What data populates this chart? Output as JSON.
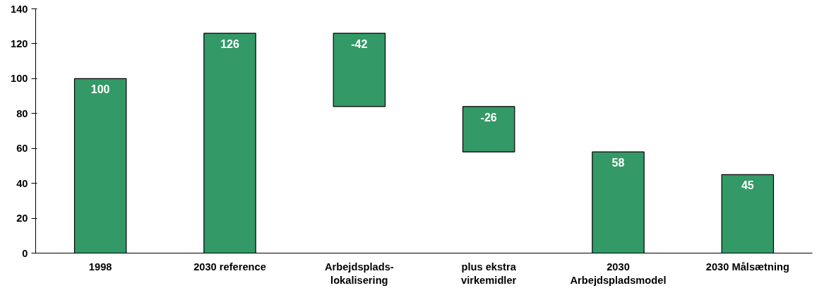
{
  "chart_data": {
    "type": "bar",
    "categories": [
      "1998",
      "2030 reference",
      "Arbejdsplads-\nlokalisering",
      "plus ekstra\nvirkemidler",
      "2030\nArbejdspladsmodel",
      "2030 Målsætning"
    ],
    "values": [
      100,
      126,
      -42,
      -26,
      58,
      45
    ],
    "base": [
      0,
      0,
      126,
      84,
      0,
      0
    ],
    "color": "#339966",
    "ylim": [
      0,
      140
    ],
    "yticks": [
      0,
      20,
      40,
      60,
      80,
      100,
      120,
      140
    ],
    "grid": false,
    "data_labels": true
  }
}
